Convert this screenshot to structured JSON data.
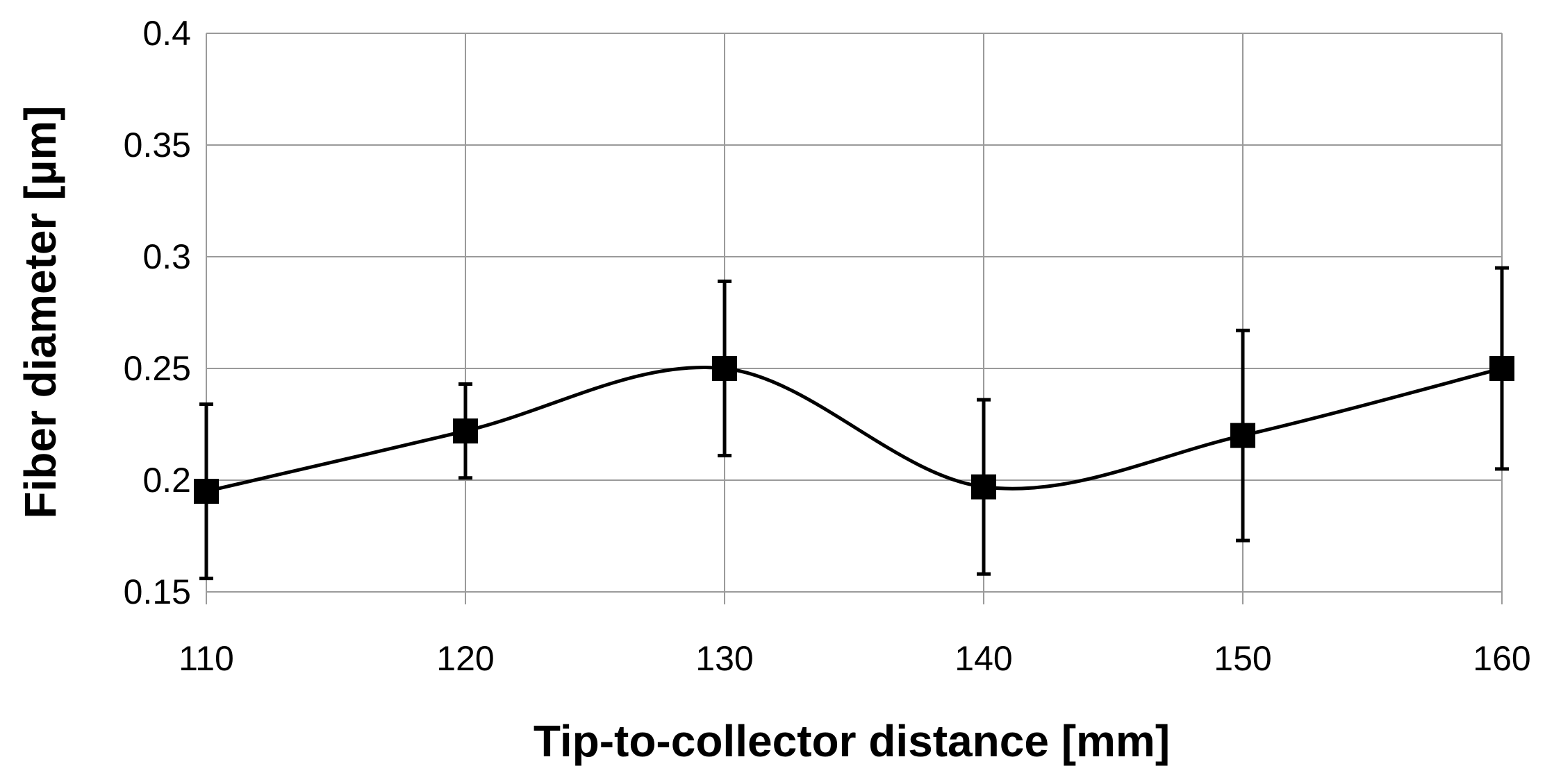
{
  "chart_data": {
    "type": "line",
    "title": "",
    "xlabel": "Tip-to-collector distance [mm]",
    "ylabel": "Fiber diameter [µm]",
    "xlim": [
      110,
      160
    ],
    "ylim": [
      0.15,
      0.4
    ],
    "x_ticks": [
      "110",
      "120",
      "130",
      "140",
      "150",
      "160"
    ],
    "y_ticks": [
      "0.15",
      "0.2",
      "0.25",
      "0.3",
      "0.35",
      "0.4"
    ],
    "grid": true,
    "legend": "none",
    "line_style": "smoothed",
    "marker": "square",
    "series": [
      {
        "color": "#000000",
        "x": [
          110,
          120,
          130,
          140,
          150,
          160
        ],
        "y": [
          0.195,
          0.222,
          0.25,
          0.197,
          0.22,
          0.25
        ],
        "error": [
          0.039,
          0.021,
          0.039,
          0.039,
          0.047,
          0.045
        ]
      }
    ]
  }
}
